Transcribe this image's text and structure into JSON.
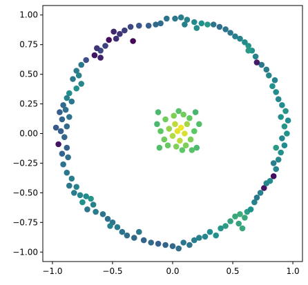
{
  "chart_data": {
    "type": "scatter",
    "title": "",
    "xlabel": "",
    "ylabel": "",
    "xlim": [
      -1.08,
      1.08
    ],
    "ylim": [
      -1.08,
      1.08
    ],
    "grid": false,
    "legend": "none",
    "colormap": "viridis",
    "x_ticks": [
      {
        "value": -1.0,
        "label": "−1.0"
      },
      {
        "value": -0.5,
        "label": "−0.5"
      },
      {
        "value": 0.0,
        "label": "0.0"
      },
      {
        "value": 0.5,
        "label": "0.5"
      },
      {
        "value": 1.0,
        "label": "1.0"
      }
    ],
    "y_ticks": [
      {
        "value": 1.0,
        "label": "1.00"
      },
      {
        "value": 0.75,
        "label": "0.75"
      },
      {
        "value": 0.5,
        "label": "0.50"
      },
      {
        "value": 0.25,
        "label": "0.25"
      },
      {
        "value": 0.0,
        "label": "0.00"
      },
      {
        "value": -0.25,
        "label": "−0.25"
      },
      {
        "value": -0.5,
        "label": "−0.50"
      },
      {
        "value": -0.75,
        "label": "−0.75"
      },
      {
        "value": -1.0,
        "label": "−1.00"
      }
    ],
    "points": [
      {
        "x": 0.07,
        "y": 0.98,
        "c": 0.42
      },
      {
        "x": 0.12,
        "y": 0.96,
        "c": 0.44
      },
      {
        "x": 0.02,
        "y": 0.97,
        "c": 0.4
      },
      {
        "x": -0.05,
        "y": 0.97,
        "c": 0.38
      },
      {
        "x": 0.18,
        "y": 0.94,
        "c": 0.47
      },
      {
        "x": 0.24,
        "y": 0.93,
        "c": 0.5
      },
      {
        "x": 0.29,
        "y": 0.92,
        "c": 0.53
      },
      {
        "x": 0.2,
        "y": 0.89,
        "c": 0.48
      },
      {
        "x": 0.1,
        "y": 0.92,
        "c": 0.43
      },
      {
        "x": -0.1,
        "y": 0.93,
        "c": 0.36
      },
      {
        "x": -0.14,
        "y": 0.92,
        "c": 0.34
      },
      {
        "x": -0.2,
        "y": 0.91,
        "c": 0.3
      },
      {
        "x": -0.28,
        "y": 0.91,
        "c": 0.26
      },
      {
        "x": -0.35,
        "y": 0.9,
        "c": 0.22
      },
      {
        "x": -0.4,
        "y": 0.87,
        "c": 0.18
      },
      {
        "x": -0.44,
        "y": 0.84,
        "c": 0.16
      },
      {
        "x": -0.47,
        "y": 0.8,
        "c": 0.14
      },
      {
        "x": -0.33,
        "y": 0.78,
        "c": 0.02
      },
      {
        "x": -0.53,
        "y": 0.79,
        "c": 0.04
      },
      {
        "x": -0.56,
        "y": 0.74,
        "c": 0.2
      },
      {
        "x": -0.6,
        "y": 0.7,
        "c": 0.22
      },
      {
        "x": -0.65,
        "y": 0.66,
        "c": 0.06
      },
      {
        "x": -0.72,
        "y": 0.62,
        "c": 0.24
      },
      {
        "x": -0.6,
        "y": 0.64,
        "c": 0.1
      },
      {
        "x": -0.76,
        "y": 0.58,
        "c": 0.4
      },
      {
        "x": -0.8,
        "y": 0.53,
        "c": 0.42
      },
      {
        "x": -0.78,
        "y": 0.49,
        "c": 0.44
      },
      {
        "x": -0.83,
        "y": 0.46,
        "c": 0.4
      },
      {
        "x": -0.76,
        "y": 0.42,
        "c": 0.46
      },
      {
        "x": -0.8,
        "y": 0.38,
        "c": 0.5
      },
      {
        "x": -0.86,
        "y": 0.34,
        "c": 0.48
      },
      {
        "x": -0.88,
        "y": 0.3,
        "c": 0.44
      },
      {
        "x": -0.84,
        "y": 0.27,
        "c": 0.4
      },
      {
        "x": -0.91,
        "y": 0.24,
        "c": 0.34
      },
      {
        "x": -0.89,
        "y": 0.2,
        "c": 0.36
      },
      {
        "x": -0.94,
        "y": 0.18,
        "c": 0.3
      },
      {
        "x": -0.86,
        "y": 0.14,
        "c": 0.38
      },
      {
        "x": -0.92,
        "y": 0.12,
        "c": 0.32
      },
      {
        "x": -0.97,
        "y": 0.05,
        "c": 0.28
      },
      {
        "x": -0.93,
        "y": 0.02,
        "c": 0.3
      },
      {
        "x": -0.88,
        "y": 0.06,
        "c": 0.34
      },
      {
        "x": -0.9,
        "y": -0.03,
        "c": 0.32
      },
      {
        "x": -0.95,
        "y": -0.09,
        "c": 0.06
      },
      {
        "x": -0.88,
        "y": -0.12,
        "c": 0.3
      },
      {
        "x": -0.92,
        "y": -0.17,
        "c": 0.32
      },
      {
        "x": -0.87,
        "y": -0.2,
        "c": 0.36
      },
      {
        "x": -0.91,
        "y": -0.26,
        "c": 0.38
      },
      {
        "x": -0.88,
        "y": -0.33,
        "c": 0.4
      },
      {
        "x": -0.84,
        "y": -0.38,
        "c": 0.42
      },
      {
        "x": -0.86,
        "y": -0.44,
        "c": 0.4
      },
      {
        "x": -0.8,
        "y": -0.45,
        "c": 0.44
      },
      {
        "x": -0.77,
        "y": -0.52,
        "c": 0.46
      },
      {
        "x": -0.82,
        "y": -0.5,
        "c": 0.42
      },
      {
        "x": -0.72,
        "y": -0.53,
        "c": 0.48
      },
      {
        "x": -0.75,
        "y": -0.58,
        "c": 0.5
      },
      {
        "x": -0.68,
        "y": -0.55,
        "c": 0.52
      },
      {
        "x": -0.66,
        "y": -0.6,
        "c": 0.44
      },
      {
        "x": -0.71,
        "y": -0.64,
        "c": 0.4
      },
      {
        "x": -0.64,
        "y": -0.66,
        "c": 0.42
      },
      {
        "x": -0.58,
        "y": -0.68,
        "c": 0.38
      },
      {
        "x": -0.54,
        "y": -0.72,
        "c": 0.36
      },
      {
        "x": -0.5,
        "y": -0.75,
        "c": 0.4
      },
      {
        "x": -0.46,
        "y": -0.79,
        "c": 0.42
      },
      {
        "x": -0.52,
        "y": -0.78,
        "c": 0.44
      },
      {
        "x": -0.42,
        "y": -0.83,
        "c": 0.38
      },
      {
        "x": -0.38,
        "y": -0.86,
        "c": 0.36
      },
      {
        "x": -0.32,
        "y": -0.88,
        "c": 0.34
      },
      {
        "x": -0.28,
        "y": -0.83,
        "c": 0.4
      },
      {
        "x": -0.24,
        "y": -0.9,
        "c": 0.32
      },
      {
        "x": -0.18,
        "y": -0.92,
        "c": 0.34
      },
      {
        "x": -0.12,
        "y": -0.93,
        "c": 0.3
      },
      {
        "x": -0.06,
        "y": -0.94,
        "c": 0.32
      },
      {
        "x": 0.0,
        "y": -0.95,
        "c": 0.34
      },
      {
        "x": 0.05,
        "y": -0.97,
        "c": 0.36
      },
      {
        "x": 0.09,
        "y": -0.92,
        "c": 0.4
      },
      {
        "x": 0.14,
        "y": -0.94,
        "c": 0.38
      },
      {
        "x": 0.18,
        "y": -0.9,
        "c": 0.42
      },
      {
        "x": 0.22,
        "y": -0.88,
        "c": 0.44
      },
      {
        "x": 0.27,
        "y": -0.87,
        "c": 0.46
      },
      {
        "x": 0.31,
        "y": -0.83,
        "c": 0.48
      },
      {
        "x": 0.36,
        "y": -0.86,
        "c": 0.5
      },
      {
        "x": 0.4,
        "y": -0.8,
        "c": 0.52
      },
      {
        "x": 0.44,
        "y": -0.78,
        "c": 0.55
      },
      {
        "x": 0.48,
        "y": -0.74,
        "c": 0.57
      },
      {
        "x": 0.52,
        "y": -0.7,
        "c": 0.6
      },
      {
        "x": 0.56,
        "y": -0.68,
        "c": 0.62
      },
      {
        "x": 0.6,
        "y": -0.71,
        "c": 0.6
      },
      {
        "x": 0.55,
        "y": -0.76,
        "c": 0.58
      },
      {
        "x": 0.58,
        "y": -0.8,
        "c": 0.6
      },
      {
        "x": 0.62,
        "y": -0.66,
        "c": 0.56
      },
      {
        "x": 0.65,
        "y": -0.64,
        "c": 0.5
      },
      {
        "x": 0.68,
        "y": -0.58,
        "c": 0.44
      },
      {
        "x": 0.7,
        "y": -0.54,
        "c": 0.4
      },
      {
        "x": 0.73,
        "y": -0.5,
        "c": 0.44
      },
      {
        "x": 0.76,
        "y": -0.46,
        "c": 0.06
      },
      {
        "x": 0.78,
        "y": -0.42,
        "c": 0.46
      },
      {
        "x": 0.81,
        "y": -0.4,
        "c": 0.48
      },
      {
        "x": 0.84,
        "y": -0.36,
        "c": 0.04
      },
      {
        "x": 0.86,
        "y": -0.3,
        "c": 0.44
      },
      {
        "x": 0.84,
        "y": -0.25,
        "c": 0.42
      },
      {
        "x": 0.88,
        "y": -0.22,
        "c": 0.46
      },
      {
        "x": 0.9,
        "y": -0.16,
        "c": 0.5
      },
      {
        "x": 0.86,
        "y": -0.12,
        "c": 0.54
      },
      {
        "x": 0.93,
        "y": -0.1,
        "c": 0.48
      },
      {
        "x": 0.91,
        "y": -0.04,
        "c": 0.46
      },
      {
        "x": 0.95,
        "y": 0.0,
        "c": 0.5
      },
      {
        "x": 0.93,
        "y": 0.06,
        "c": 0.52
      },
      {
        "x": 0.96,
        "y": 0.11,
        "c": 0.48
      },
      {
        "x": 0.9,
        "y": 0.14,
        "c": 0.5
      },
      {
        "x": 0.94,
        "y": 0.19,
        "c": 0.52
      },
      {
        "x": 0.91,
        "y": 0.24,
        "c": 0.48
      },
      {
        "x": 0.88,
        "y": 0.29,
        "c": 0.46
      },
      {
        "x": 0.86,
        "y": 0.35,
        "c": 0.48
      },
      {
        "x": 0.83,
        "y": 0.4,
        "c": 0.5
      },
      {
        "x": 0.85,
        "y": 0.45,
        "c": 0.44
      },
      {
        "x": 0.8,
        "y": 0.49,
        "c": 0.46
      },
      {
        "x": 0.78,
        "y": 0.54,
        "c": 0.42
      },
      {
        "x": 0.74,
        "y": 0.58,
        "c": 0.4
      },
      {
        "x": 0.7,
        "y": 0.6,
        "c": 0.08
      },
      {
        "x": 0.69,
        "y": 0.65,
        "c": 0.44
      },
      {
        "x": 0.66,
        "y": 0.7,
        "c": 0.5
      },
      {
        "x": 0.63,
        "y": 0.74,
        "c": 0.52
      },
      {
        "x": 0.6,
        "y": 0.77,
        "c": 0.48
      },
      {
        "x": 0.56,
        "y": 0.8,
        "c": 0.44
      },
      {
        "x": 0.52,
        "y": 0.82,
        "c": 0.42
      },
      {
        "x": 0.48,
        "y": 0.85,
        "c": 0.4
      },
      {
        "x": 0.44,
        "y": 0.88,
        "c": 0.38
      },
      {
        "x": 0.39,
        "y": 0.9,
        "c": 0.36
      },
      {
        "x": 0.34,
        "y": 0.92,
        "c": 0.38
      },
      {
        "x": 0.63,
        "y": 0.7,
        "c": 0.54
      },
      {
        "x": -0.63,
        "y": 0.72,
        "c": 0.16
      },
      {
        "x": -0.49,
        "y": 0.86,
        "c": 0.12
      },
      {
        "x": 0.04,
        "y": 0.02,
        "c": 0.96
      },
      {
        "x": 0.07,
        "y": 0.05,
        "c": 0.98
      },
      {
        "x": 0.02,
        "y": 0.08,
        "c": 0.9
      },
      {
        "x": 0.1,
        "y": 0.0,
        "c": 0.94
      },
      {
        "x": 0.0,
        "y": -0.02,
        "c": 0.88
      },
      {
        "x": 0.12,
        "y": 0.08,
        "c": 0.86
      },
      {
        "x": 0.06,
        "y": -0.06,
        "c": 0.9
      },
      {
        "x": -0.03,
        "y": 0.04,
        "c": 0.84
      },
      {
        "x": 0.14,
        "y": 0.13,
        "c": 0.76
      },
      {
        "x": -0.06,
        "y": 0.12,
        "c": 0.78
      },
      {
        "x": 0.01,
        "y": 0.15,
        "c": 0.8
      },
      {
        "x": 0.09,
        "y": 0.16,
        "c": 0.78
      },
      {
        "x": 0.15,
        "y": -0.05,
        "c": 0.8
      },
      {
        "x": -0.07,
        "y": -0.05,
        "c": 0.78
      },
      {
        "x": 0.03,
        "y": -0.11,
        "c": 0.8
      },
      {
        "x": 0.11,
        "y": -0.1,
        "c": 0.8
      },
      {
        "x": 0.18,
        "y": 0.02,
        "c": 0.74
      },
      {
        "x": -0.1,
        "y": 0.02,
        "c": 0.74
      },
      {
        "x": -0.12,
        "y": 0.18,
        "c": 0.68
      },
      {
        "x": 0.19,
        "y": 0.18,
        "c": 0.66
      },
      {
        "x": -0.11,
        "y": -0.12,
        "c": 0.7
      },
      {
        "x": 0.2,
        "y": -0.12,
        "c": 0.68
      },
      {
        "x": 0.22,
        "y": 0.08,
        "c": 0.7
      },
      {
        "x": -0.13,
        "y": 0.08,
        "c": 0.68
      },
      {
        "x": 0.05,
        "y": 0.19,
        "c": 0.72
      },
      {
        "x": 0.08,
        "y": -0.14,
        "c": 0.74
      },
      {
        "x": -0.04,
        "y": -0.1,
        "c": 0.76
      },
      {
        "x": 0.16,
        "y": -0.14,
        "c": 0.72
      }
    ]
  }
}
